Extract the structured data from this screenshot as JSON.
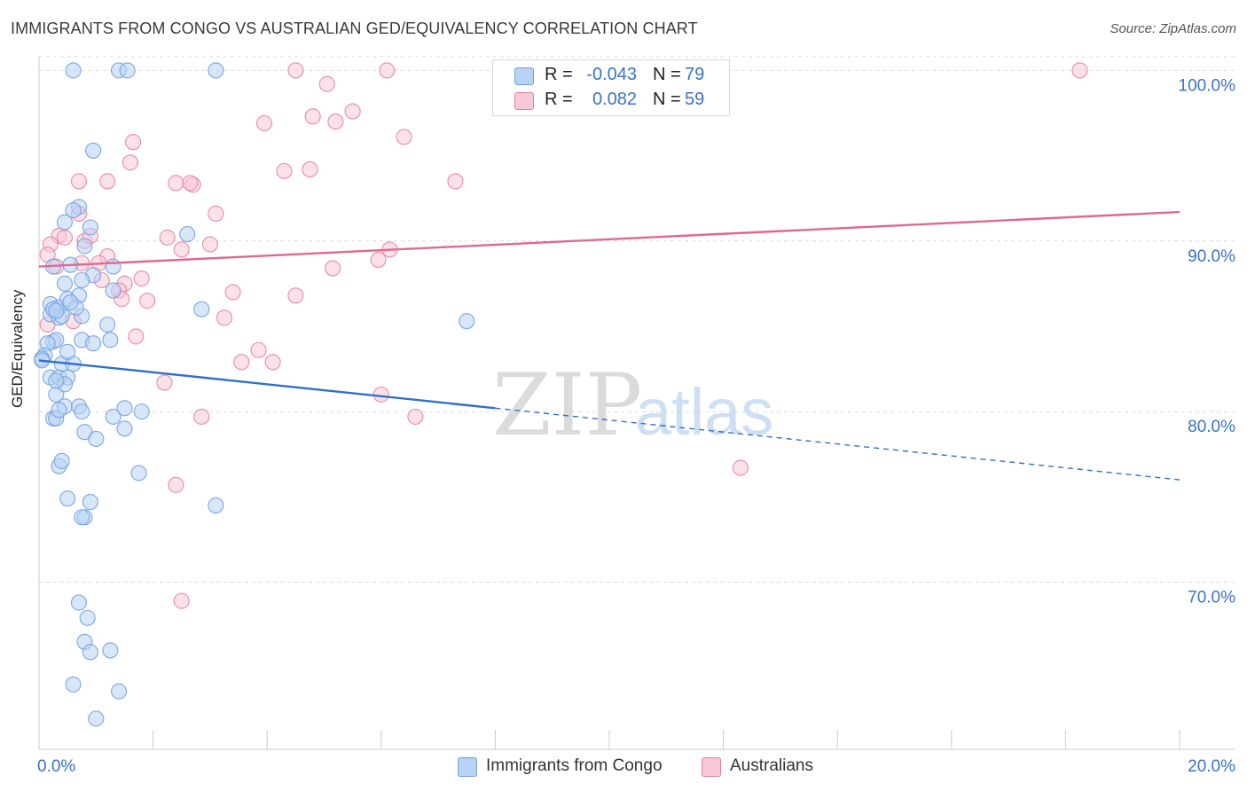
{
  "title": "IMMIGRANTS FROM CONGO VS AUSTRALIAN GED/EQUIVALENCY CORRELATION CHART",
  "source": "Source: ZipAtlas.com",
  "watermark": {
    "zip": "ZIP",
    "atlas": "atlas"
  },
  "legend_top": [
    {
      "r_label": "R =",
      "r_value": "-0.043",
      "n_label": "N =",
      "n_value": "79",
      "color": "#a8c8f0"
    },
    {
      "r_label": "R =",
      "r_value": "0.082",
      "n_label": "N =",
      "n_value": "59",
      "color": "#f4b8cb"
    }
  ],
  "legend_bottom": [
    {
      "label": "Immigrants from Congo",
      "color": "#a8c8f0"
    },
    {
      "label": "Australians",
      "color": "#f4b8cb"
    }
  ],
  "chart_data": {
    "type": "scatter",
    "title": "IMMIGRANTS FROM CONGO VS AUSTRALIAN GED/EQUIVALENCY CORRELATION CHART",
    "xlabel": "",
    "ylabel": "GED/Equivalency",
    "xlim": [
      0,
      20
    ],
    "ylim": [
      60.2,
      100.8
    ],
    "x_tick_labels": [
      "0.0%",
      "20.0%"
    ],
    "y_ticks": [
      70,
      80,
      90,
      100
    ],
    "y_tick_labels": [
      "70.0%",
      "80.0%",
      "90.0%",
      "100.0%"
    ],
    "grid": true,
    "legend_position": "top-center",
    "series": [
      {
        "name": "Immigrants from Congo",
        "color": "#6fa0e0",
        "fill": "#b8d2f4",
        "trend": {
          "x0": 0,
          "y0": 83.0,
          "x1": 8.0,
          "y1": 80.2,
          "dash_to_x": 20.0,
          "dash_to_y": 76.0
        },
        "x": [
          0.6,
          1.4,
          1.55,
          3.1,
          0.95,
          0.7,
          0.6,
          0.9,
          0.8,
          1.3,
          0.55,
          0.25,
          0.2,
          0.35,
          0.5,
          0.7,
          0.2,
          0.35,
          0.4,
          0.75,
          1.2,
          0.65,
          0.25,
          0.3,
          0.15,
          0.1,
          0.05,
          0.05,
          0.2,
          0.35,
          0.5,
          0.75,
          0.95,
          1.25,
          0.4,
          0.6,
          0.3,
          0.45,
          0.25,
          0.45,
          0.7,
          0.3,
          0.8,
          1.0,
          1.5,
          0.35,
          0.4,
          0.5,
          0.8,
          0.9,
          0.75,
          0.35,
          0.3,
          1.3,
          0.45,
          1.3,
          0.75,
          3.1,
          0.7,
          0.8,
          0.6,
          1.25,
          0.9,
          0.85,
          1.4,
          1.0,
          1.75,
          2.85,
          1.8,
          1.5,
          7.5,
          2.6,
          0.45,
          0.95,
          0.5,
          0.25,
          0.3,
          0.75,
          0.55
        ],
        "y": [
          100.0,
          100.0,
          100.0,
          100.0,
          95.3,
          92.0,
          91.8,
          90.8,
          89.7,
          88.5,
          88.6,
          88.5,
          86.3,
          86.1,
          86.6,
          86.8,
          85.7,
          85.5,
          85.6,
          85.6,
          85.1,
          86.1,
          84.1,
          84.2,
          84.0,
          83.3,
          83.1,
          83.0,
          82.0,
          82.0,
          82.0,
          84.2,
          84.0,
          84.2,
          82.8,
          82.8,
          81.0,
          81.6,
          79.6,
          80.3,
          80.3,
          79.6,
          78.8,
          78.4,
          79.0,
          76.8,
          77.1,
          74.9,
          73.8,
          74.7,
          73.8,
          80.1,
          81.8,
          87.1,
          87.5,
          79.7,
          80.0,
          74.5,
          68.8,
          66.5,
          64.0,
          66.0,
          65.9,
          67.9,
          63.6,
          62.0,
          76.4,
          86.0,
          80.0,
          80.2,
          85.3,
          90.4,
          91.1,
          88.0,
          83.5,
          86.0,
          85.9,
          87.7,
          86.4
        ]
      },
      {
        "name": "Australians",
        "color": "#e8809f",
        "fill": "#f8c8d6",
        "trend": {
          "x0": 0,
          "y0": 88.5,
          "x1": 20.0,
          "y1": 91.7
        },
        "x": [
          4.5,
          5.05,
          6.1,
          18.25,
          4.8,
          5.5,
          5.2,
          3.95,
          6.4,
          1.65,
          1.6,
          0.7,
          1.2,
          2.4,
          2.7,
          2.65,
          7.3,
          4.3,
          4.75,
          3.1,
          0.7,
          0.8,
          0.9,
          2.25,
          2.5,
          3.0,
          0.35,
          0.45,
          1.2,
          1.05,
          1.1,
          1.5,
          1.9,
          1.8,
          1.4,
          1.45,
          0.2,
          0.15,
          0.3,
          0.15,
          0.6,
          0.75,
          3.4,
          3.25,
          4.1,
          4.5,
          5.15,
          5.95,
          6.15,
          1.7,
          2.2,
          2.85,
          3.85,
          3.55,
          6.0,
          12.3,
          6.6,
          2.4,
          2.5
        ],
        "y": [
          100.0,
          99.2,
          100.0,
          100.0,
          97.3,
          97.6,
          97.0,
          96.9,
          96.1,
          95.8,
          94.6,
          93.5,
          93.5,
          93.4,
          93.3,
          93.4,
          93.5,
          94.1,
          94.2,
          91.6,
          91.6,
          90.0,
          90.3,
          90.2,
          89.5,
          89.8,
          90.3,
          90.2,
          89.1,
          88.7,
          87.7,
          87.5,
          86.5,
          87.8,
          87.1,
          86.6,
          89.8,
          89.2,
          88.5,
          85.1,
          85.3,
          88.7,
          87.0,
          85.5,
          82.9,
          86.8,
          88.4,
          88.9,
          89.5,
          84.4,
          81.7,
          79.7,
          83.6,
          82.9,
          81.0,
          76.7,
          79.7,
          75.7,
          68.9
        ]
      }
    ]
  }
}
